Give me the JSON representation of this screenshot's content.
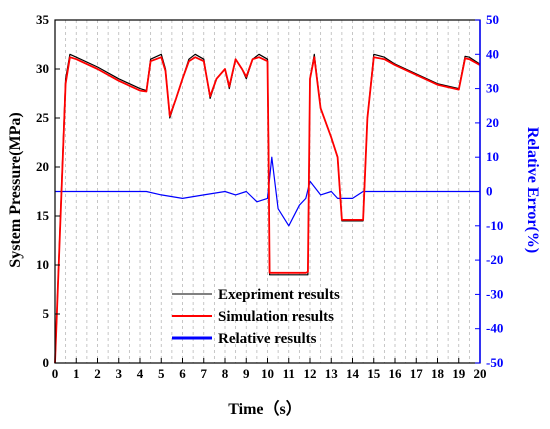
{
  "chart_data": {
    "type": "line",
    "xlabel": "Time（s）",
    "ylabel_left": "System Pressure(MPa)",
    "ylabel_right": "Relative Error(%)",
    "xlim": [
      0,
      20
    ],
    "ylim_left": [
      0,
      35
    ],
    "ylim_right": [
      -50,
      50
    ],
    "x_ticks": [
      "0",
      "1",
      "2",
      "3",
      "4",
      "5",
      "6",
      "7",
      "8",
      "9",
      "10",
      "11",
      "12",
      "13",
      "14",
      "15",
      "16",
      "17",
      "18",
      "19",
      "20"
    ],
    "y_left_ticks": [
      "0",
      "5",
      "10",
      "15",
      "20",
      "25",
      "30",
      "35"
    ],
    "y_right_ticks": [
      "-50",
      "-40",
      "-30",
      "-20",
      "-10",
      "0",
      "10",
      "20",
      "30",
      "40",
      "50"
    ],
    "grid": "vertical dashed at every 0.5 s",
    "legend_position": "bottom-center",
    "colors": {
      "experiment": "#000000",
      "simulation": "#ff0000",
      "error": "#0000ff",
      "right_axis": "#0000ff",
      "left_axis": "#000000"
    },
    "series": [
      {
        "name": "Exepriment results",
        "axis": "left",
        "x": [
          0,
          0.5,
          0.7,
          1.0,
          2.0,
          3.0,
          4.0,
          4.3,
          4.5,
          5.0,
          5.2,
          5.4,
          5.7,
          6.0,
          6.3,
          6.6,
          7.0,
          7.3,
          7.6,
          8.0,
          8.2,
          8.5,
          8.8,
          9.0,
          9.3,
          9.6,
          10.0,
          10.05,
          10.1,
          10.2,
          11.0,
          11.8,
          11.9,
          12.0,
          12.2,
          12.5,
          13.0,
          13.3,
          13.5,
          14.0,
          14.5,
          14.7,
          15.0,
          15.5,
          16.0,
          17.0,
          18.0,
          19.0,
          19.3,
          19.5,
          20.0
        ],
        "y": [
          0,
          29,
          31.5,
          31.2,
          30.2,
          29,
          28,
          27.8,
          31,
          31.5,
          30,
          25,
          27,
          29,
          31,
          31.5,
          31,
          27,
          29,
          30,
          28,
          31,
          30,
          29,
          31,
          31.5,
          31,
          22,
          9,
          9,
          9,
          9,
          9,
          29,
          31.5,
          26,
          23,
          21,
          14.5,
          14.5,
          14.5,
          25,
          31.5,
          31.2,
          30.5,
          29.5,
          28.5,
          28,
          31.3,
          31.2,
          30.5
        ]
      },
      {
        "name": "Simulation results",
        "axis": "left",
        "x": [
          0,
          0.5,
          0.7,
          1.0,
          2.0,
          3.0,
          4.0,
          4.3,
          4.5,
          5.0,
          5.2,
          5.4,
          5.7,
          6.0,
          6.3,
          6.6,
          7.0,
          7.3,
          7.6,
          8.0,
          8.2,
          8.5,
          8.8,
          9.0,
          9.3,
          9.6,
          10.0,
          10.05,
          10.1,
          10.2,
          11.0,
          11.8,
          11.9,
          12.0,
          12.2,
          12.5,
          13.0,
          13.3,
          13.5,
          14.0,
          14.5,
          14.7,
          15.0,
          15.5,
          16.0,
          17.0,
          18.0,
          19.0,
          19.3,
          19.5,
          20.0
        ],
        "y": [
          0,
          28.5,
          31.2,
          31,
          30,
          28.8,
          27.8,
          27.7,
          30.8,
          31.2,
          29.8,
          25.2,
          27,
          29,
          30.8,
          31.2,
          30.8,
          27.2,
          29,
          30,
          28.2,
          31,
          30,
          29.2,
          31,
          31.2,
          30.8,
          21,
          9.2,
          9.2,
          9.2,
          9.2,
          9.3,
          29,
          31.2,
          26,
          23,
          21,
          14.6,
          14.6,
          14.6,
          25,
          31.2,
          31,
          30.4,
          29.4,
          28.4,
          27.9,
          31.1,
          31,
          30.4
        ]
      },
      {
        "name": "Relative results",
        "axis": "right",
        "x": [
          0,
          0.5,
          1,
          2,
          3,
          4,
          4.3,
          5,
          6,
          7,
          8,
          8.5,
          9,
          9.5,
          10,
          10.2,
          10.5,
          11,
          11.5,
          11.8,
          12,
          12.5,
          13,
          13.3,
          13.5,
          14,
          14.5,
          15,
          16,
          17,
          18,
          19,
          20
        ],
        "y": [
          0,
          0,
          0,
          0,
          0,
          0,
          0,
          -1,
          -2,
          -1,
          0,
          -1,
          0,
          -3,
          -2,
          10,
          -5,
          -10,
          -4,
          -2,
          3,
          -1,
          0,
          -2,
          -2,
          -2,
          0,
          0,
          0,
          0,
          0,
          0,
          0
        ]
      }
    ]
  }
}
